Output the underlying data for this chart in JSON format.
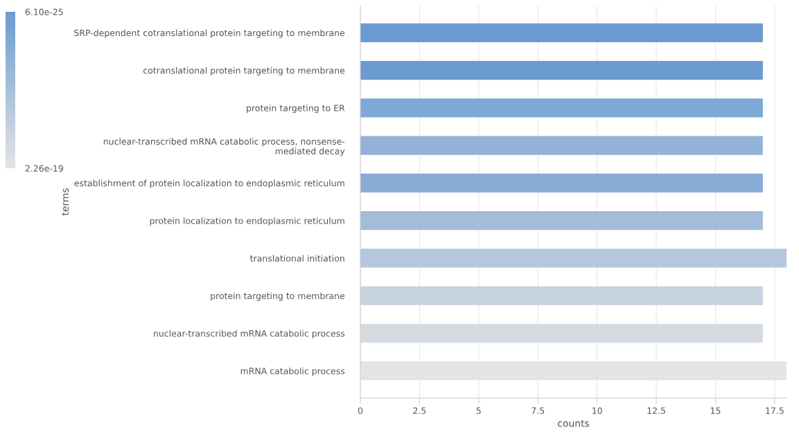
{
  "chart_data": {
    "type": "bar",
    "orientation": "horizontal",
    "categories": [
      "SRP-dependent cotranslational protein targeting to membrane",
      "cotranslational protein targeting to membrane",
      "protein targeting to ER",
      "nuclear-transcribed mRNA catabolic process, nonsense-\nmediated decay",
      "establishment of protein localization to endoplasmic reticulum",
      "protein localization to endoplasmic reticulum",
      "translational initiation",
      "protein targeting to membrane",
      "nuclear-transcribed mRNA catabolic process",
      "mRNA catabolic process"
    ],
    "values": [
      17,
      17,
      17,
      17,
      17,
      17,
      18,
      17,
      17,
      18
    ],
    "colors": [
      "#6b9bd0",
      "#6b9bd0",
      "#7ea8d6",
      "#93b2d8",
      "#89acd7",
      "#a3bcda",
      "#b5c7df",
      "#c7d3e1",
      "#d6dbe2",
      "#e4e4e4"
    ],
    "xlabel": "counts",
    "ylabel": "terms",
    "xlim": [
      0,
      18
    ],
    "xticks": [
      0,
      2.5,
      5,
      7.5,
      10,
      12.5,
      15,
      17.5
    ],
    "grid": "x",
    "clim": [
      6.1e-25,
      2.26e-19
    ],
    "cticks": [
      {
        "value": 6.1e-25,
        "label": "6.10e-25"
      },
      {
        "value": 2.26e-19,
        "label": "2.26e-19"
      }
    ]
  }
}
